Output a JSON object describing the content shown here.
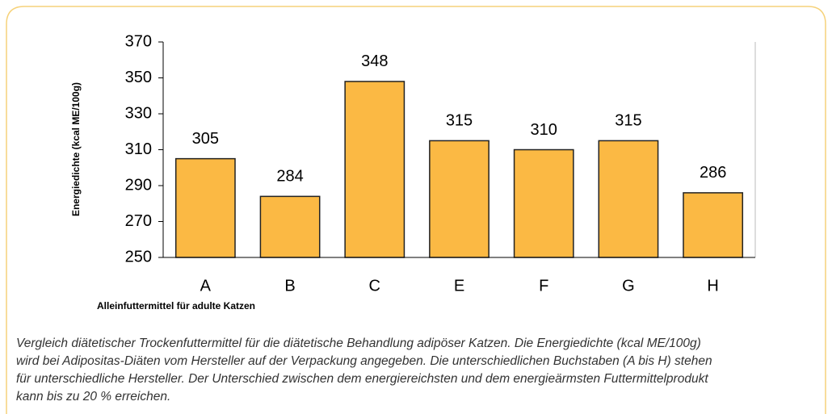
{
  "chart_data": {
    "type": "bar",
    "y_label": "Energiedichte (kcal ME/100g)",
    "x_label": "Alleinfuttermittel für adulte Katzen",
    "categories": [
      "A",
      "B",
      "C",
      "E",
      "F",
      "G",
      "H"
    ],
    "values": [
      305,
      284,
      348,
      315,
      310,
      315,
      286
    ],
    "color": "#fbb944",
    "ylim": [
      250,
      370
    ],
    "yticks": [
      250,
      270,
      290,
      310,
      330,
      350,
      370
    ],
    "grid": false
  },
  "caption": [
    "Vergleich diätetischer Trockenfuttermittel für die diätetische Behandlung adipöser Katzen. Die Energiedichte (kcal ME/100g)",
    "wird bei Adipositas-Diäten vom Hersteller auf der Verpackung angegeben. Die unterschiedlichen Buchstaben (A bis H) stehen",
    "für unterschiedliche Hersteller. Der Unterschied zwischen dem energiereichsten und dem energieärmsten Futtermittelprodukt",
    "kann bis zu 20 % erreichen."
  ]
}
